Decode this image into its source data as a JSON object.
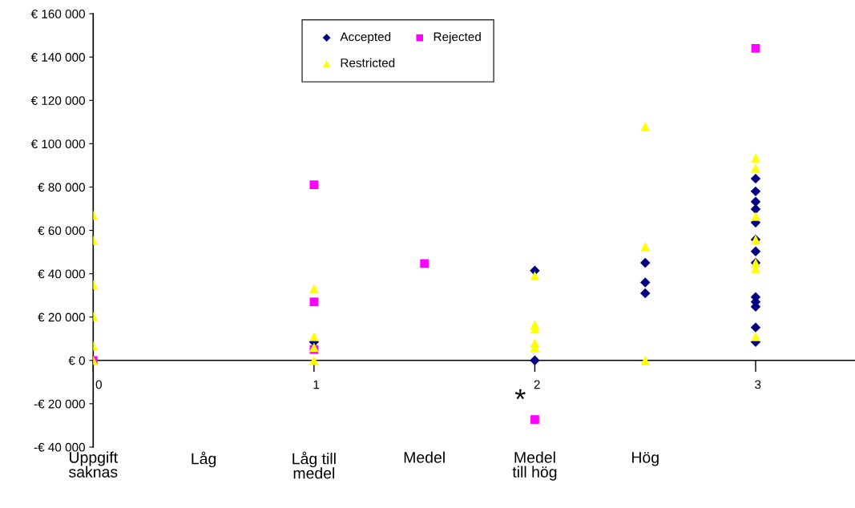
{
  "chart_data": {
    "type": "scatter",
    "xlim": [
      0,
      3.45
    ],
    "xticks": [
      0,
      1,
      2,
      3
    ],
    "ylim": [
      -40000,
      160000
    ],
    "yticks": [
      {
        "value": -40000,
        "label": "-€ 40 000"
      },
      {
        "value": -20000,
        "label": "-€ 20 000"
      },
      {
        "value": 0,
        "label": "€ 0"
      },
      {
        "value": 20000,
        "label": "€ 20 000"
      },
      {
        "value": 40000,
        "label": "€ 40 000"
      },
      {
        "value": 60000,
        "label": "€ 60 000"
      },
      {
        "value": 80000,
        "label": "€ 80 000"
      },
      {
        "value": 100000,
        "label": "€ 100 000"
      },
      {
        "value": 120000,
        "label": "€ 120 000"
      },
      {
        "value": 140000,
        "label": "€ 140 000"
      },
      {
        "value": 160000,
        "label": "€ 160 000"
      }
    ],
    "grid": false,
    "legend": "top",
    "series": [
      {
        "name": "Accepted",
        "color": "#000080",
        "marker": "diamond",
        "x": [
          1,
          2,
          2,
          2.5,
          2.5,
          2.5,
          3,
          3,
          3,
          3,
          3,
          3,
          3,
          3,
          3,
          3,
          3,
          3,
          3
        ],
        "values": [
          8500,
          41400,
          0,
          45000,
          36000,
          31000,
          83900,
          78000,
          73200,
          69800,
          63600,
          55800,
          50300,
          45000,
          29200,
          27000,
          24800,
          15200,
          8500
        ]
      },
      {
        "name": "Rejected",
        "color": "#ff00ff",
        "marker": "square",
        "x": [
          0,
          1,
          1,
          1,
          1.5,
          2,
          3
        ],
        "values": [
          0,
          81000,
          27000,
          5000,
          44700,
          -27300,
          144000
        ]
      },
      {
        "name": "Restricted",
        "color": "#ffff00",
        "marker": "triangle",
        "x": [
          0,
          0,
          0,
          0,
          0,
          0,
          1,
          1,
          1,
          1,
          2,
          2,
          2,
          2,
          2,
          2.5,
          2.5,
          2.5,
          3,
          3,
          3,
          3,
          3,
          3,
          3
        ],
        "values": [
          67000,
          55400,
          35000,
          20300,
          6700,
          0,
          33000,
          11000,
          6000,
          0,
          39000,
          16500,
          14500,
          8000,
          6000,
          108000,
          52500,
          0,
          93500,
          88700,
          66500,
          55800,
          45000,
          42500,
          11000
        ]
      }
    ],
    "annotations": [
      "Uppgift\nsaknas",
      "Låg",
      "Låg till\nmedel",
      "Medel",
      "Medel\ntill hög",
      "Hög",
      {
        "text": "*",
        "x": 2,
        "y": -27300
      }
    ]
  }
}
